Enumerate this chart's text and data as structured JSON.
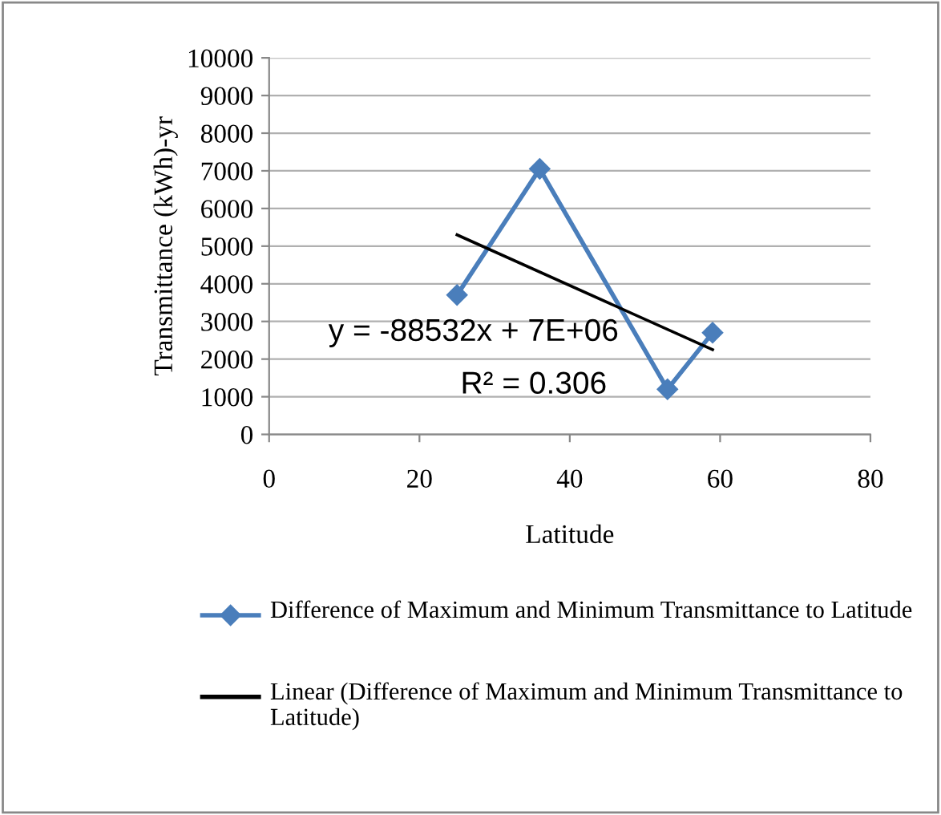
{
  "chart_data": {
    "type": "line",
    "xlabel": "Latitude",
    "ylabel": "Transmittance (kWh)-yr",
    "xlim": [
      0,
      80
    ],
    "xticks": [
      0,
      20,
      40,
      60,
      80
    ],
    "ylim": [
      0,
      10000
    ],
    "yticks": [
      0,
      1000,
      2000,
      3000,
      4000,
      5000,
      6000,
      7000,
      8000,
      9000,
      10000
    ],
    "grid": "y",
    "legend": "bottom",
    "series": [
      {
        "name": "Difference of Maximum and Minimum Transmittance to Latitude",
        "color": "#4a7ebb",
        "x": [
          25,
          36,
          53,
          59
        ],
        "values": [
          3700,
          7050,
          1200,
          2700
        ],
        "marker": "diamond"
      },
      {
        "name": "Linear (Difference of Maximum and Minimum Transmittance to Latitude)",
        "color": "#000000",
        "x": [
          25,
          59
        ],
        "values": [
          5300,
          2250
        ],
        "marker": "none"
      }
    ],
    "annotations": [
      "y = -88532x + 7E+06",
      "R² = 0.306"
    ]
  }
}
